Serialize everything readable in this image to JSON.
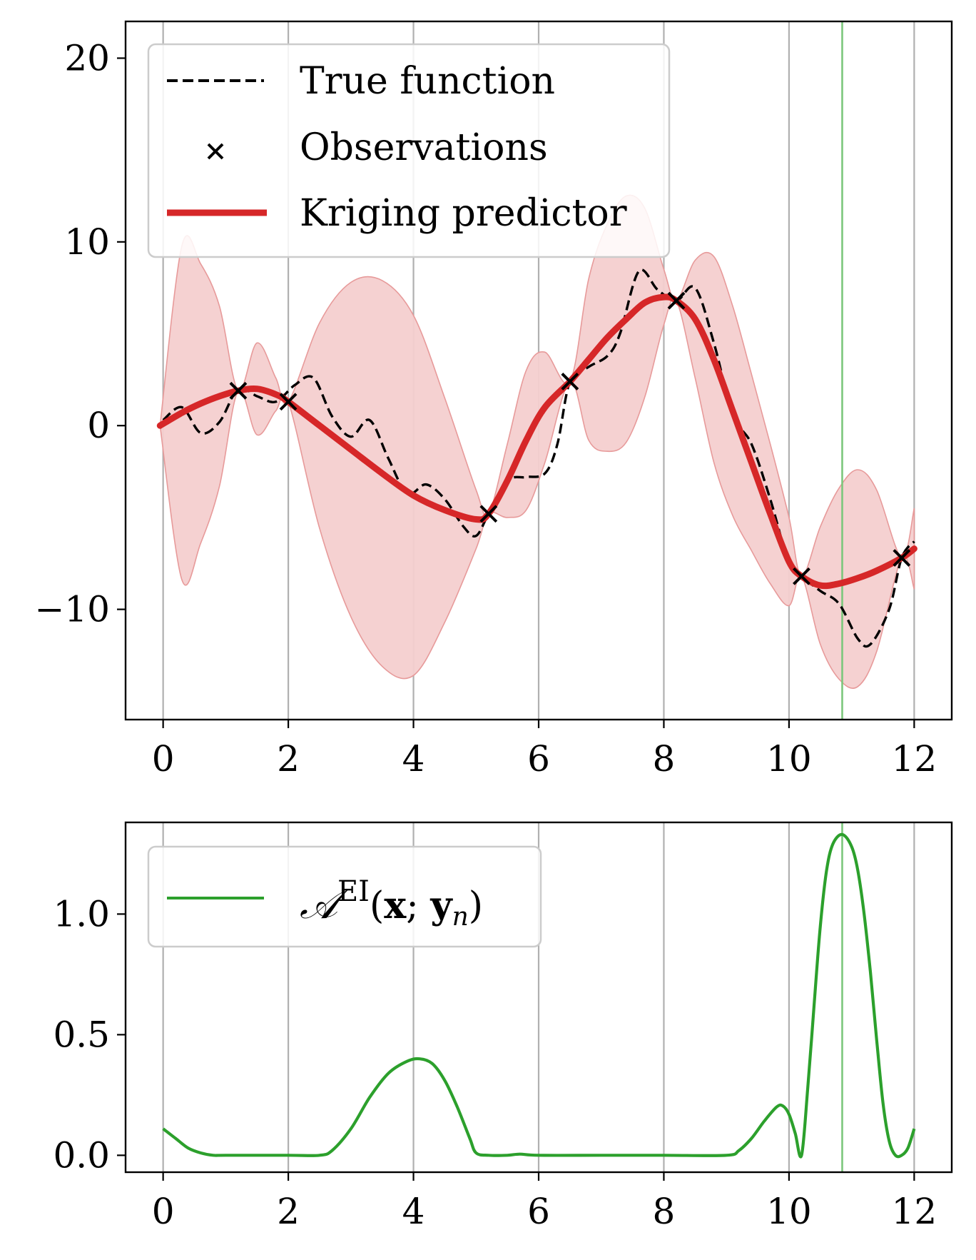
{
  "colors": {
    "true_function": "#000000",
    "kriging": "#d62728",
    "band_fill": "#f4cfcf",
    "band_edge": "#e79a9a",
    "acquisition": "#2ca02c",
    "next_point_line": "#7cc77c",
    "grid": "#b0b0b0"
  },
  "chart_data": [
    {
      "type": "line",
      "title": "",
      "xlabel": "",
      "ylabel": "",
      "xlim": [
        -0.6,
        12.6
      ],
      "ylim": [
        -16,
        22
      ],
      "xticks": [
        0,
        2,
        4,
        6,
        8,
        10,
        12
      ],
      "xtick_labels": [
        "0",
        "2",
        "4",
        "6",
        "8",
        "10",
        "12"
      ],
      "yticks": [
        -10,
        0,
        10,
        20
      ],
      "ytick_labels": [
        "−10",
        "0",
        "10",
        "20"
      ],
      "grid": "x-axis vertical lines",
      "legend_position": "top-left",
      "legend": [
        "True function",
        "Observations",
        "Kriging predictor"
      ],
      "next_point_x": 10.85,
      "series": [
        {
          "name": "True function",
          "style": "dashed",
          "x": [
            0,
            0.3,
            0.6,
            0.9,
            1.2,
            1.5,
            1.8,
            2.1,
            2.4,
            2.7,
            3.0,
            3.3,
            3.6,
            3.9,
            4.2,
            4.5,
            4.8,
            5.0,
            5.2,
            5.5,
            5.8,
            6.1,
            6.3,
            6.5,
            6.8,
            7.1,
            7.3,
            7.6,
            7.9,
            8.2,
            8.5,
            8.8,
            9.1,
            9.4,
            9.7,
            10.0,
            10.2,
            10.5,
            10.8,
            11.1,
            11.3,
            11.6,
            11.8,
            12.0
          ],
          "y": [
            0.3,
            1.0,
            -0.4,
            0.2,
            2.0,
            1.6,
            1.3,
            2.2,
            2.6,
            0.5,
            -0.6,
            0.3,
            -1.8,
            -3.7,
            -3.2,
            -4.0,
            -5.5,
            -6.0,
            -4.8,
            -3.0,
            -2.8,
            -2.6,
            -1.0,
            2.4,
            3.2,
            3.8,
            5.0,
            8.4,
            7.4,
            6.8,
            7.5,
            4.5,
            0.6,
            -1.0,
            -4.0,
            -7.5,
            -8.2,
            -9.0,
            -9.7,
            -11.6,
            -11.9,
            -10.0,
            -7.2,
            -6.3
          ]
        },
        {
          "name": "Observations",
          "style": "markers",
          "x": [
            1.2,
            2.0,
            5.2,
            6.5,
            8.2,
            10.2,
            11.8
          ],
          "y": [
            1.9,
            1.3,
            -4.8,
            2.4,
            6.8,
            -8.2,
            -7.2
          ]
        },
        {
          "name": "Kriging predictor",
          "style": "solid",
          "x": [
            -0.05,
            0.3,
            0.6,
            0.9,
            1.2,
            1.5,
            1.8,
            2.0,
            2.5,
            3.0,
            3.5,
            4.0,
            4.5,
            5.0,
            5.2,
            5.5,
            5.8,
            6.1,
            6.5,
            6.8,
            7.1,
            7.4,
            7.7,
            8.0,
            8.2,
            8.5,
            8.8,
            9.1,
            9.4,
            9.7,
            10.0,
            10.2,
            10.5,
            10.8,
            11.1,
            11.4,
            11.8,
            12.0
          ],
          "y": [
            0.0,
            0.7,
            1.2,
            1.6,
            1.9,
            2.0,
            1.7,
            1.3,
            0.0,
            -1.3,
            -2.6,
            -3.8,
            -4.6,
            -5.1,
            -4.8,
            -3.0,
            -0.8,
            1.0,
            2.4,
            3.6,
            4.8,
            5.8,
            6.7,
            7.0,
            6.8,
            5.8,
            3.6,
            0.8,
            -2.0,
            -4.8,
            -7.4,
            -8.2,
            -8.7,
            -8.6,
            -8.3,
            -7.9,
            -7.2,
            -6.7
          ],
          "upper": [
            0.0,
            9.8,
            8.8,
            6.5,
            1.9,
            4.5,
            2.6,
            1.3,
            5.6,
            7.8,
            7.9,
            6.0,
            1.5,
            -3.5,
            -4.8,
            -1.0,
            3.0,
            4.0,
            2.4,
            8.0,
            11.0,
            12.5,
            11.8,
            8.5,
            6.8,
            9.0,
            9.2,
            6.5,
            2.8,
            -1.0,
            -5.0,
            -8.2,
            -5.5,
            -3.4,
            -2.4,
            -3.5,
            -7.2,
            -4.5
          ],
          "lower": [
            0.0,
            -8.4,
            -6.4,
            -3.3,
            1.9,
            -0.5,
            0.8,
            1.3,
            -5.6,
            -10.4,
            -13.1,
            -13.6,
            -10.7,
            -6.7,
            -4.8,
            -5.0,
            -4.6,
            -2.0,
            2.4,
            -0.8,
            -1.4,
            -0.9,
            1.6,
            5.5,
            6.8,
            2.6,
            -2.0,
            -4.9,
            -6.8,
            -8.6,
            -9.8,
            -8.2,
            -11.9,
            -13.8,
            -14.2,
            -12.3,
            -7.2,
            -8.9
          ]
        }
      ]
    },
    {
      "type": "line",
      "title": "",
      "xlabel": "",
      "ylabel": "",
      "xlim": [
        -0.6,
        12.6
      ],
      "ylim": [
        -0.07,
        1.38
      ],
      "xticks": [
        0,
        2,
        4,
        6,
        8,
        10,
        12
      ],
      "xtick_labels": [
        "0",
        "2",
        "4",
        "6",
        "8",
        "10",
        "12"
      ],
      "yticks": [
        0.0,
        0.5,
        1.0
      ],
      "ytick_labels": [
        "0.0",
        "0.5",
        "1.0"
      ],
      "grid": "x-axis vertical lines",
      "legend_position": "top-left",
      "legend": [
        "A^EI(x; y_n)"
      ],
      "next_point_x": 10.85,
      "series": [
        {
          "name": "A^EI(x; y_n)",
          "style": "solid",
          "x": [
            0,
            0.2,
            0.4,
            0.6,
            0.8,
            1.0,
            2.0,
            2.5,
            2.7,
            3.0,
            3.3,
            3.6,
            3.9,
            4.1,
            4.3,
            4.5,
            4.7,
            4.9,
            5.0,
            5.2,
            5.5,
            5.7,
            6.0,
            7.0,
            8.0,
            9.0,
            9.2,
            9.4,
            9.6,
            9.8,
            9.9,
            10.0,
            10.1,
            10.2,
            10.3,
            10.4,
            10.5,
            10.6,
            10.7,
            10.85,
            11.0,
            11.1,
            11.2,
            11.3,
            11.4,
            11.5,
            11.6,
            11.7,
            11.8,
            11.9,
            12.0
          ],
          "y": [
            0.11,
            0.07,
            0.03,
            0.01,
            0.0,
            0.0,
            0.0,
            0.0,
            0.02,
            0.11,
            0.24,
            0.34,
            0.39,
            0.4,
            0.38,
            0.31,
            0.2,
            0.07,
            0.01,
            0.0,
            0.0,
            0.005,
            0.0,
            0.0,
            0.0,
            0.0,
            0.02,
            0.07,
            0.14,
            0.2,
            0.205,
            0.17,
            0.09,
            0.0,
            0.28,
            0.62,
            0.95,
            1.18,
            1.29,
            1.33,
            1.28,
            1.18,
            1.0,
            0.76,
            0.48,
            0.22,
            0.06,
            0.0,
            0.0,
            0.03,
            0.11
          ]
        }
      ]
    }
  ]
}
